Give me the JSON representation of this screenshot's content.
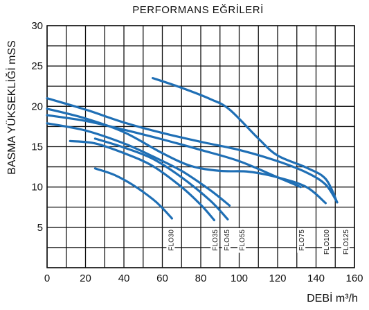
{
  "chart_data": {
    "type": "line",
    "title": "PERFORMANS EĞRİLERİ",
    "xlabel": "DEBİ  m³/h",
    "ylabel": "BASMA YÜKSEKLİĞİ mSS",
    "xlim": [
      0,
      160
    ],
    "ylim": [
      0,
      30
    ],
    "x_ticks": [
      "0",
      "20",
      "40",
      "60",
      "80",
      "100",
      "120",
      "140",
      "160"
    ],
    "y_ticks": [
      "5",
      "10",
      "15",
      "20",
      "25",
      "30"
    ],
    "grid": true,
    "line_color": "#1f6fb5",
    "series": [
      {
        "name": "FLO30",
        "label_x": 65,
        "points": [
          [
            25,
            12.3
          ],
          [
            35,
            11.5
          ],
          [
            45,
            10.2
          ],
          [
            55,
            8.5
          ],
          [
            60,
            7.4
          ],
          [
            65,
            6.1
          ]
        ]
      },
      {
        "name": "FLO35",
        "label_x": 88,
        "points": [
          [
            12,
            15.7
          ],
          [
            25,
            15.4
          ],
          [
            40,
            14.2
          ],
          [
            55,
            12.6
          ],
          [
            70,
            10.0
          ],
          [
            80,
            7.8
          ],
          [
            87,
            5.9
          ]
        ]
      },
      {
        "name": "FLO45",
        "label_x": 94,
        "points": [
          [
            25,
            16.0
          ],
          [
            40,
            14.9
          ],
          [
            55,
            13.5
          ],
          [
            70,
            11.2
          ],
          [
            85,
            8.3
          ],
          [
            94,
            6.0
          ]
        ]
      },
      {
        "name": "FLO55",
        "label_x": 102,
        "points": [
          [
            0,
            17.9
          ],
          [
            20,
            17.0
          ],
          [
            40,
            15.4
          ],
          [
            55,
            13.8
          ],
          [
            70,
            12.0
          ],
          [
            85,
            9.6
          ],
          [
            95,
            7.7
          ]
        ]
      },
      {
        "name": "FLO75",
        "label_x": 133,
        "points": [
          [
            0,
            18.9
          ],
          [
            20,
            18.2
          ],
          [
            40,
            17.1
          ],
          [
            60,
            15.9
          ],
          [
            80,
            14.6
          ],
          [
            100,
            13.2
          ],
          [
            120,
            11.2
          ],
          [
            132,
            10.0
          ]
        ]
      },
      {
        "name": "FLO100",
        "label_x": 146,
        "points": [
          [
            0,
            19.7
          ],
          [
            20,
            18.5
          ],
          [
            40,
            16.8
          ],
          [
            60,
            14.2
          ],
          [
            75,
            12.6
          ],
          [
            90,
            12.0
          ],
          [
            105,
            11.9
          ],
          [
            120,
            11.2
          ],
          [
            135,
            10.0
          ],
          [
            145,
            8.0
          ]
        ]
      },
      {
        "name": "FLO125",
        "label_x": 156,
        "points": [
          [
            0,
            21.0
          ],
          [
            20,
            19.6
          ],
          [
            40,
            18.0
          ],
          [
            60,
            16.7
          ],
          [
            80,
            15.6
          ],
          [
            100,
            14.6
          ],
          [
            120,
            13.2
          ],
          [
            135,
            11.8
          ],
          [
            145,
            10.3
          ],
          [
            151,
            8.1
          ]
        ]
      },
      {
        "name": "",
        "points": [
          [
            55,
            23.5
          ],
          [
            70,
            22.3
          ],
          [
            85,
            20.9
          ],
          [
            95,
            19.6
          ],
          [
            110,
            16.0
          ],
          [
            120,
            13.9
          ],
          [
            135,
            12.4
          ],
          [
            145,
            11.0
          ],
          [
            151,
            8.1
          ]
        ]
      }
    ]
  }
}
